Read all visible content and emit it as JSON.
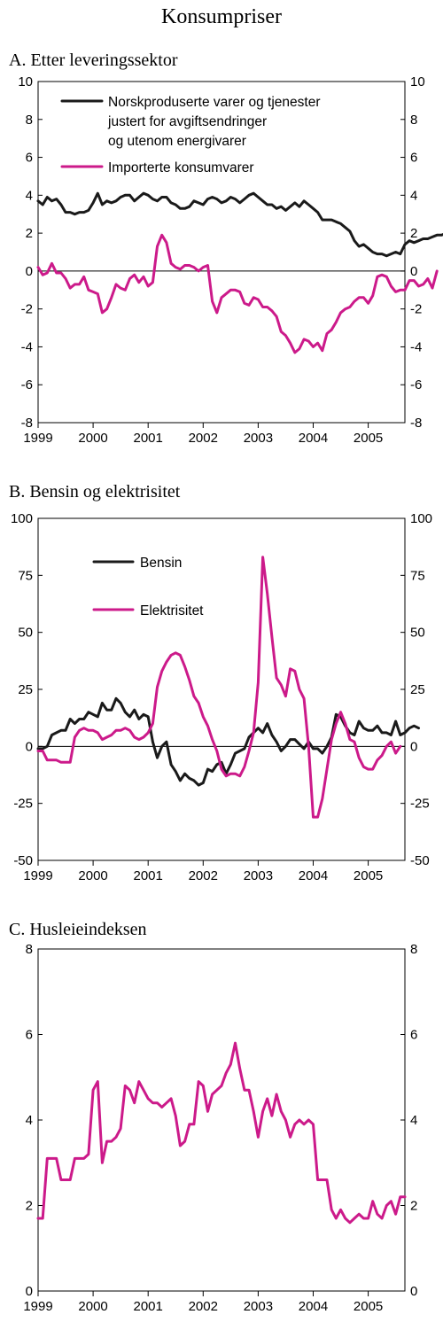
{
  "figure": {
    "title": "Konsumpriser"
  },
  "colors": {
    "black_series": "#1a1a1a",
    "magenta_series": "#cc1a8a"
  },
  "chart_data": [
    {
      "type": "line",
      "title": "A. Etter leveringssektor",
      "xlabel": "",
      "ylabel": "",
      "ylim": [
        -8,
        10
      ],
      "yticks": [
        -8,
        -6,
        -4,
        -2,
        0,
        2,
        4,
        6,
        8,
        10
      ],
      "xlim": [
        1999.0,
        2005.667
      ],
      "xticks": [
        1999,
        2000,
        2001,
        2002,
        2003,
        2004,
        2005
      ],
      "grid": false,
      "legend_position": "top-left",
      "series": [
        {
          "name": "Norskproduserte varer og tjenester justert for avgiftsendringer og utenom energivarer",
          "color": "black",
          "x_start": 1999.0,
          "x_step": 0.08333,
          "values": [
            3.7,
            3.5,
            3.9,
            3.7,
            3.8,
            3.5,
            3.1,
            3.1,
            3.0,
            3.1,
            3.1,
            3.2,
            3.6,
            4.1,
            3.5,
            3.7,
            3.6,
            3.7,
            3.9,
            4.0,
            4.0,
            3.7,
            3.9,
            4.1,
            4.0,
            3.8,
            3.7,
            3.9,
            3.9,
            3.6,
            3.5,
            3.3,
            3.3,
            3.4,
            3.7,
            3.6,
            3.5,
            3.8,
            3.9,
            3.8,
            3.6,
            3.7,
            3.9,
            3.8,
            3.6,
            3.8,
            4.0,
            4.1,
            3.9,
            3.7,
            3.5,
            3.5,
            3.3,
            3.4,
            3.2,
            3.4,
            3.6,
            3.4,
            3.7,
            3.5,
            3.3,
            3.1,
            2.7,
            2.7,
            2.7,
            2.6,
            2.5,
            2.3,
            2.1,
            1.6,
            1.3,
            1.4,
            1.2,
            1.0,
            0.9,
            0.9,
            0.8,
            0.9,
            1.0,
            0.9,
            1.4,
            1.6,
            1.5,
            1.6,
            1.7,
            1.7,
            1.8,
            1.9,
            1.9,
            2.0,
            2.1
          ]
        },
        {
          "name": "Importerte konsumvarer",
          "color": "magenta",
          "x_start": 1999.0,
          "x_step": 0.08333,
          "values": [
            0.2,
            -0.2,
            -0.1,
            0.4,
            -0.1,
            -0.1,
            -0.4,
            -0.9,
            -0.7,
            -0.7,
            -0.3,
            -1.0,
            -1.1,
            -1.2,
            -2.2,
            -2.0,
            -1.4,
            -0.7,
            -0.9,
            -1.0,
            -0.4,
            -0.2,
            -0.6,
            -0.3,
            -0.8,
            -0.6,
            1.3,
            1.9,
            1.5,
            0.4,
            0.2,
            0.1,
            0.3,
            0.3,
            0.2,
            0.0,
            0.2,
            0.3,
            -1.6,
            -2.2,
            -1.4,
            -1.2,
            -1.0,
            -1.0,
            -1.1,
            -1.7,
            -1.8,
            -1.4,
            -1.5,
            -1.9,
            -1.9,
            -2.1,
            -2.4,
            -3.2,
            -3.4,
            -3.8,
            -4.3,
            -4.1,
            -3.6,
            -3.7,
            -4.0,
            -3.8,
            -4.2,
            -3.3,
            -3.1,
            -2.7,
            -2.2,
            -2.0,
            -1.9,
            -1.6,
            -1.4,
            -1.4,
            -1.7,
            -1.3,
            -0.3,
            -0.2,
            -0.3,
            -0.8,
            -1.1,
            -1.0,
            -1.0,
            -0.5,
            -0.5,
            -0.8,
            -0.7,
            -0.4,
            -0.9,
            0.0
          ]
        }
      ]
    },
    {
      "type": "line",
      "title": "B. Bensin og elektrisitet",
      "xlabel": "",
      "ylabel": "",
      "ylim": [
        -50,
        100
      ],
      "yticks": [
        -50,
        -25,
        0,
        25,
        50,
        75,
        100
      ],
      "xlim": [
        1999.0,
        2005.667
      ],
      "xticks": [
        1999,
        2000,
        2001,
        2002,
        2003,
        2004,
        2005
      ],
      "grid": false,
      "legend_position": "top-left",
      "series": [
        {
          "name": "Bensin",
          "color": "black",
          "x_start": 1999.0,
          "x_step": 0.08333,
          "values": [
            -1,
            -1,
            0,
            5,
            6,
            7,
            7,
            12,
            10,
            12,
            12,
            15,
            14,
            13,
            19,
            16,
            16,
            21,
            19,
            15,
            13,
            16,
            12,
            14,
            13,
            2,
            -5,
            0,
            2,
            -8,
            -11,
            -15,
            -12,
            -14,
            -15,
            -17,
            -16,
            -10,
            -11,
            -8,
            -7,
            -12,
            -8,
            -3,
            -2,
            -1,
            4,
            6,
            8,
            6,
            10,
            5,
            2,
            -2,
            0,
            3,
            3,
            1,
            -1,
            2,
            -1,
            -1,
            -3,
            0,
            4,
            14,
            13,
            9,
            6,
            5,
            11,
            8,
            7,
            7,
            9,
            6,
            6,
            5,
            11,
            5,
            6,
            8,
            9,
            8
          ]
        },
        {
          "name": "Elektrisitet",
          "color": "magenta",
          "x_start": 1999.0,
          "x_step": 0.08333,
          "values": [
            -2,
            -2,
            -6,
            -6,
            -6,
            -7,
            -7,
            -7,
            4,
            7,
            8,
            7,
            7,
            6,
            3,
            4,
            5,
            7,
            7,
            8,
            7,
            4,
            3,
            4,
            6,
            10,
            26,
            33,
            37,
            40,
            41,
            40,
            35,
            29,
            22,
            19,
            13,
            9,
            3,
            -2,
            -10,
            -13,
            -12,
            -12,
            -13,
            -9,
            -2,
            6,
            28,
            83,
            67,
            48,
            30,
            27,
            22,
            34,
            33,
            25,
            21,
            0,
            -31,
            -31,
            -23,
            -10,
            3,
            10,
            15,
            10,
            3,
            2,
            -5,
            -9,
            -10,
            -10,
            -6,
            -4,
            0,
            2,
            -3,
            0
          ]
        }
      ]
    },
    {
      "type": "line",
      "title": "C. Husleieindeksen",
      "xlabel": "",
      "ylabel": "",
      "ylim": [
        0,
        8
      ],
      "yticks": [
        0,
        2,
        4,
        6,
        8
      ],
      "xlim": [
        1999.0,
        2005.667
      ],
      "xticks": [
        1999,
        2000,
        2001,
        2002,
        2003,
        2004,
        2005
      ],
      "grid": false,
      "series": [
        {
          "name": "",
          "color": "magenta",
          "x_start": 1999.0,
          "x_step": 0.08333,
          "values": [
            1.7,
            1.7,
            3.1,
            3.1,
            3.1,
            2.6,
            2.6,
            2.6,
            3.1,
            3.1,
            3.1,
            3.2,
            4.7,
            4.9,
            3.0,
            3.5,
            3.5,
            3.6,
            3.8,
            4.8,
            4.7,
            4.4,
            4.9,
            4.7,
            4.5,
            4.4,
            4.4,
            4.3,
            4.4,
            4.5,
            4.1,
            3.4,
            3.5,
            3.9,
            3.9,
            4.9,
            4.8,
            4.2,
            4.6,
            4.7,
            4.8,
            5.1,
            5.3,
            5.8,
            5.2,
            4.7,
            4.7,
            4.2,
            3.6,
            4.2,
            4.5,
            4.1,
            4.6,
            4.2,
            4.0,
            3.6,
            3.9,
            4.0,
            3.9,
            4.0,
            3.9,
            2.6,
            2.6,
            2.6,
            1.9,
            1.7,
            1.9,
            1.7,
            1.6,
            1.7,
            1.8,
            1.7,
            1.7,
            2.1,
            1.8,
            1.7,
            2.0,
            2.1,
            1.8,
            2.2,
            2.2
          ]
        }
      ]
    }
  ]
}
